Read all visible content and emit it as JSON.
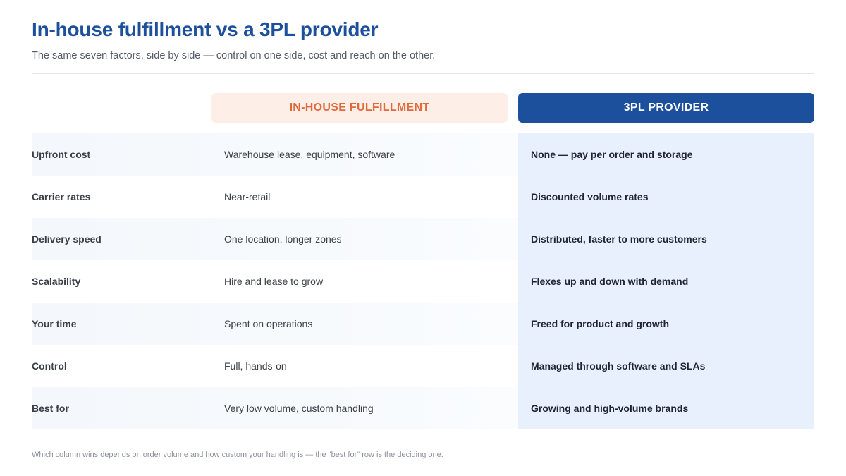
{
  "header": {
    "title": "In-house fulfillment vs a 3PL provider",
    "subtitle": "The same seven factors, side by side — control on one side, cost and reach on the other."
  },
  "columns": {
    "inhouse": "IN-HOUSE FULFILLMENT",
    "tpl": "3PL PROVIDER"
  },
  "rows": [
    {
      "factor": "Upfront cost",
      "inhouse": "Warehouse lease, equipment, software",
      "tpl": "None — pay per order and storage"
    },
    {
      "factor": "Carrier rates",
      "inhouse": "Near-retail",
      "tpl": "Discounted volume rates"
    },
    {
      "factor": "Delivery speed",
      "inhouse": "One location, longer zones",
      "tpl": "Distributed, faster to more customers"
    },
    {
      "factor": "Scalability",
      "inhouse": "Hire and lease to grow",
      "tpl": "Flexes up and down with demand"
    },
    {
      "factor": "Your time",
      "inhouse": "Spent on operations",
      "tpl": "Freed for product and growth"
    },
    {
      "factor": "Control",
      "inhouse": "Full, hands-on",
      "tpl": "Managed through software and SLAs"
    },
    {
      "factor": "Best for",
      "inhouse": "Very low volume, custom handling",
      "tpl": "Growing and high-volume brands"
    }
  ],
  "footnote": "Which column wins depends on order volume and how custom your handling is — the \"best for\" row is the deciding one.",
  "colors": {
    "title": "#1c4f9c",
    "inhouse_accent": "#e06a3b",
    "inhouse_header_bg": "#fdeee8",
    "tpl_header_bg": "#1c4f9c",
    "tpl_column_bg": "#e9f0fd"
  }
}
